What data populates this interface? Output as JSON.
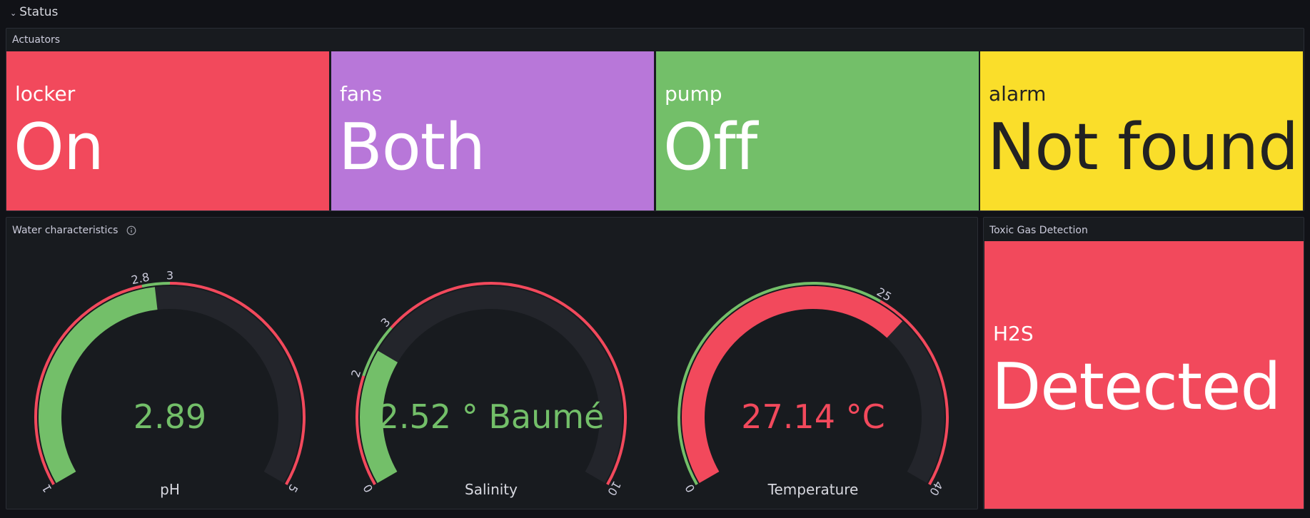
{
  "row": {
    "title": "Status"
  },
  "actuators": {
    "title": "Actuators",
    "tiles": [
      {
        "label": "locker",
        "value": "On",
        "bg": "#f2495c",
        "fg": "#ffffff"
      },
      {
        "label": "fans",
        "value": "Both",
        "bg": "#b877d9",
        "fg": "#ffffff"
      },
      {
        "label": "pump",
        "value": "Off",
        "bg": "#73bf69",
        "fg": "#ffffff"
      },
      {
        "label": "alarm",
        "value": "Not found",
        "bg": "#fade2a",
        "fg": "#222222"
      }
    ]
  },
  "water": {
    "title": "Water characteristics",
    "gauges": [
      {
        "name": "pH",
        "display": "2.89",
        "value": 2.89,
        "min": 1,
        "max": 5,
        "value_color": "#73bf69",
        "thresholds": [
          {
            "from": 1,
            "to": 2.8,
            "color": "#f2495c"
          },
          {
            "from": 2.8,
            "to": 3,
            "color": "#73bf69"
          },
          {
            "from": 3,
            "to": 5,
            "color": "#f2495c"
          }
        ],
        "ticks": [
          "1",
          "2.8",
          "3",
          "5"
        ]
      },
      {
        "name": "Salinity",
        "display": "2.52 ° Baumé",
        "value": 2.52,
        "min": 0,
        "max": 10,
        "value_color": "#73bf69",
        "thresholds": [
          {
            "from": 0,
            "to": 2,
            "color": "#f2495c"
          },
          {
            "from": 2,
            "to": 3,
            "color": "#73bf69"
          },
          {
            "from": 3,
            "to": 10,
            "color": "#f2495c"
          }
        ],
        "ticks": [
          "0",
          "2",
          "3",
          "10"
        ]
      },
      {
        "name": "Temperature",
        "display": "27.14 °C",
        "value": 27.14,
        "min": 0,
        "max": 40,
        "value_color": "#f2495c",
        "thresholds": [
          {
            "from": 0,
            "to": 25,
            "color": "#73bf69"
          },
          {
            "from": 25,
            "to": 40,
            "color": "#f2495c"
          }
        ],
        "ticks": [
          "0",
          "25",
          "40"
        ]
      }
    ]
  },
  "toxic": {
    "title": "Toxic Gas Detection",
    "label": "H2S",
    "value": "Detected",
    "bg": "#f2495c",
    "fg": "#ffffff"
  }
}
